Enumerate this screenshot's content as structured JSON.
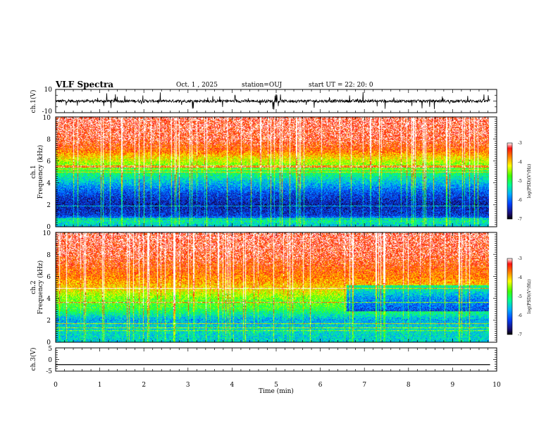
{
  "header": {
    "title": "VLF Spectra",
    "date": "Oct. 1 , 2025",
    "station": "station=OUJ",
    "start_ut": "start UT =  22: 20: 0"
  },
  "chart_data": [
    {
      "type": "line",
      "panel": "ch.1 waveform",
      "ylabel": "ch.1(V)",
      "ylim": [
        -10,
        10
      ],
      "yticks": [
        "10",
        "-10"
      ],
      "xlim": [
        0,
        10
      ],
      "waveform_level": 0,
      "waveform_noise_amplitude": 2.5,
      "waveform_end": 9.85
    },
    {
      "type": "heatmap",
      "panel": "ch.1 spectrogram",
      "ylabel_line1": "ch.1",
      "ylabel_line2": "Frequency (kHz)",
      "ylim": [
        0,
        10
      ],
      "yticks": [
        "0",
        "2",
        "4",
        "6",
        "8",
        "10"
      ],
      "xlim": [
        0,
        9.85
      ],
      "colorbar": {
        "label": "log(PSD)(V²/Hz)",
        "range": [
          -7,
          -3
        ],
        "ticks": [
          "-3",
          "-4",
          "-5",
          "-6",
          "-7"
        ]
      },
      "profile_kHz_to_logPSD": [
        [
          0,
          -5.6
        ],
        [
          0.5,
          -5.2
        ],
        [
          1,
          -6.3
        ],
        [
          2,
          -6.5
        ],
        [
          3,
          -6.2
        ],
        [
          4,
          -5.6
        ],
        [
          5,
          -5.0
        ],
        [
          6,
          -4.3
        ],
        [
          7,
          -3.6
        ],
        [
          8,
          -3.3
        ],
        [
          10,
          -3.2
        ]
      ]
    },
    {
      "type": "heatmap",
      "panel": "ch.2 spectrogram",
      "ylabel_line1": "ch.2",
      "ylabel_line2": "Frequency (kHz)",
      "ylim": [
        0,
        10
      ],
      "yticks": [
        "0",
        "2",
        "4",
        "6",
        "8",
        "10"
      ],
      "xlim": [
        0,
        9.85
      ],
      "colorbar": {
        "label": "log(PSD)(V²/Hz)",
        "range": [
          -7,
          -3
        ],
        "ticks": [
          "-3",
          "-4",
          "-5",
          "-6",
          "-7"
        ]
      },
      "profile_kHz_to_logPSD": [
        [
          0,
          -5.5
        ],
        [
          1,
          -5.4
        ],
        [
          2,
          -5.7
        ],
        [
          3,
          -4.9
        ],
        [
          4,
          -4.6
        ],
        [
          5,
          -4.0
        ],
        [
          6,
          -3.7
        ],
        [
          8,
          -3.3
        ],
        [
          10,
          -3.2
        ]
      ],
      "change_at_min": 6.6,
      "after_change_offset_3to5kHz": -1.2
    },
    {
      "type": "line",
      "panel": "ch.3 waveform",
      "ylabel": "ch.3(V)",
      "ylim": [
        -5,
        5
      ],
      "yticks": [
        "5",
        "0",
        "-5"
      ],
      "xlim": [
        0,
        10
      ],
      "waveform_level": -2.2,
      "waveform_end": 9.85
    }
  ],
  "x_axis": {
    "label": "Time (min)",
    "ticks": [
      "0",
      "1",
      "2",
      "3",
      "4",
      "5",
      "6",
      "7",
      "8",
      "9",
      "10"
    ]
  }
}
